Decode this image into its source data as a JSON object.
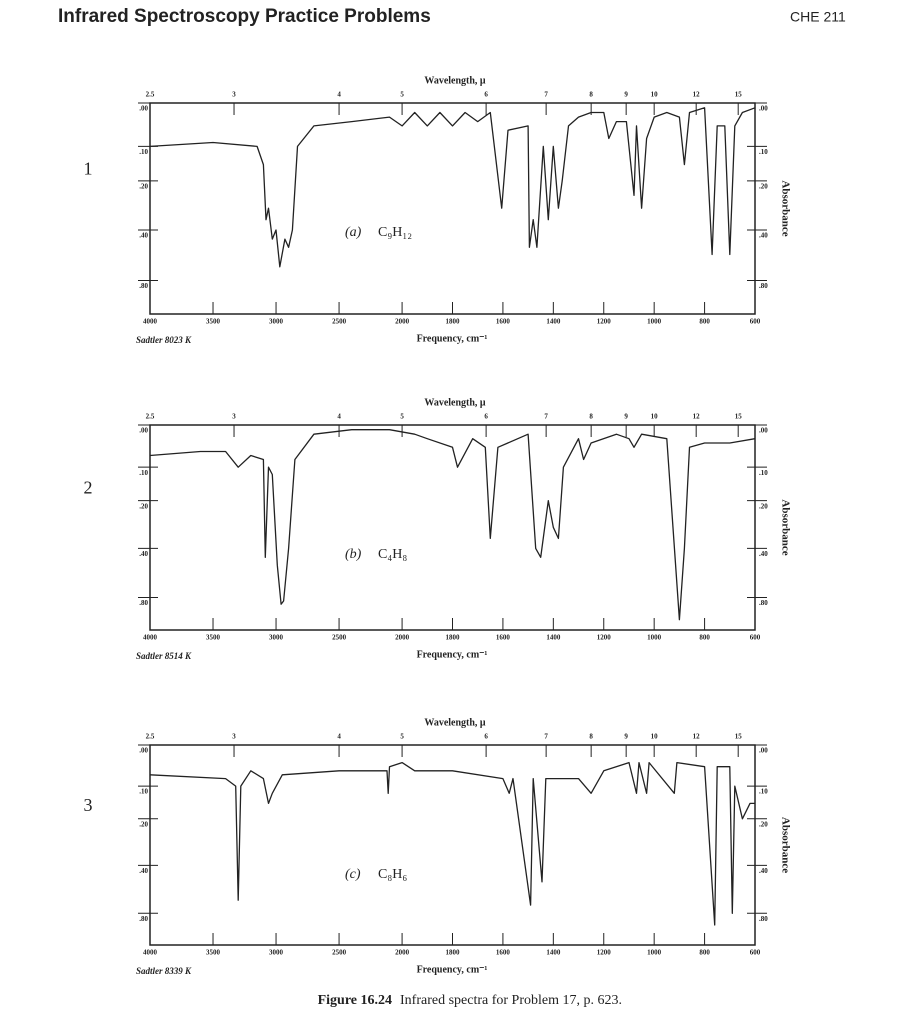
{
  "header": {
    "title": "Infrared Spectroscopy Practice Problems",
    "course": "CHE 211"
  },
  "chart_data": [
    {
      "type": "line",
      "number": "1",
      "x2label": "Wavelength, μ",
      "xlabel": "Frequency, cm⁻¹",
      "ylabel": "Absorbance",
      "source": "Sadtler 8023 K",
      "annotation_label": "(a)",
      "annotation_formula": "C₉H₁₂",
      "color": "#222222",
      "xlim": [
        4000,
        600
      ],
      "x_scale_break": 2000,
      "y_scale": "transmittance",
      "xticks": [
        4000,
        3500,
        3000,
        2500,
        2000,
        1800,
        1600,
        1400,
        1200,
        1000,
        800,
        600
      ],
      "x2ticks": [
        2.5,
        3,
        4,
        5,
        6,
        7,
        8,
        9,
        10,
        12,
        15
      ],
      "yticks": [
        {
          "value": 0,
          "label": ".00"
        },
        {
          "value": 0.1,
          "label": ".10"
        },
        {
          "value": 0.2,
          "label": ".20"
        },
        {
          "value": 0.4,
          "label": ".40"
        },
        {
          "value": 0.8,
          "label": ".80"
        }
      ],
      "x": [
        4000,
        3500,
        3150,
        3100,
        3080,
        3060,
        3030,
        3000,
        2970,
        2930,
        2900,
        2870,
        2830,
        2700,
        2400,
        2100,
        2000,
        1950,
        1900,
        1850,
        1800,
        1750,
        1700,
        1650,
        1605,
        1580,
        1500,
        1495,
        1480,
        1465,
        1440,
        1420,
        1400,
        1380,
        1365,
        1340,
        1300,
        1250,
        1200,
        1180,
        1150,
        1110,
        1080,
        1070,
        1050,
        1030,
        1000,
        950,
        900,
        880,
        860,
        800,
        770,
        750,
        720,
        700,
        680,
        650,
        600
      ],
      "values": [
        0.1,
        0.09,
        0.1,
        0.15,
        0.35,
        0.3,
        0.45,
        0.4,
        0.65,
        0.45,
        0.5,
        0.4,
        0.1,
        0.05,
        0.04,
        0.03,
        0.05,
        0.02,
        0.05,
        0.02,
        0.05,
        0.02,
        0.04,
        0.02,
        0.3,
        0.06,
        0.05,
        0.5,
        0.35,
        0.5,
        0.1,
        0.35,
        0.1,
        0.3,
        0.2,
        0.05,
        0.03,
        0.02,
        0.02,
        0.08,
        0.04,
        0.04,
        0.25,
        0.05,
        0.3,
        0.08,
        0.03,
        0.02,
        0.03,
        0.15,
        0.02,
        0.01,
        0.55,
        0.05,
        0.05,
        0.55,
        0.05,
        0.02,
        0.01
      ]
    },
    {
      "type": "line",
      "number": "2",
      "x2label": "Wavelength, μ",
      "xlabel": "Frequency, cm⁻¹",
      "ylabel": "Absorbance",
      "source": "Sadtler 8514 K",
      "annotation_label": "(b)",
      "annotation_formula": "C₄H₈",
      "color": "#222222",
      "xlim": [
        4000,
        600
      ],
      "x_scale_break": 2000,
      "y_scale": "transmittance",
      "xticks": [
        4000,
        3500,
        3000,
        2500,
        2000,
        1800,
        1600,
        1400,
        1200,
        1000,
        800,
        600
      ],
      "x2ticks": [
        2.5,
        3,
        4,
        5,
        6,
        7,
        8,
        9,
        10,
        12,
        15
      ],
      "yticks": [
        {
          "value": 0,
          "label": ".00"
        },
        {
          "value": 0.1,
          "label": ".10"
        },
        {
          "value": 0.2,
          "label": ".20"
        },
        {
          "value": 0.4,
          "label": ".40"
        },
        {
          "value": 0.8,
          "label": ".80"
        }
      ],
      "x": [
        4000,
        3600,
        3400,
        3300,
        3200,
        3100,
        3085,
        3060,
        3030,
        2990,
        2960,
        2940,
        2900,
        2850,
        2700,
        2400,
        2100,
        1950,
        1900,
        1800,
        1780,
        1720,
        1670,
        1650,
        1620,
        1500,
        1470,
        1450,
        1420,
        1400,
        1380,
        1360,
        1300,
        1280,
        1250,
        1150,
        1100,
        1080,
        1050,
        950,
        900,
        880,
        860,
        800,
        700,
        600
      ],
      "values": [
        0.07,
        0.06,
        0.06,
        0.1,
        0.07,
        0.08,
        0.45,
        0.1,
        0.12,
        0.5,
        0.9,
        0.85,
        0.4,
        0.08,
        0.02,
        0.01,
        0.01,
        0.02,
        0.03,
        0.05,
        0.1,
        0.03,
        0.05,
        0.35,
        0.05,
        0.02,
        0.4,
        0.45,
        0.2,
        0.3,
        0.35,
        0.1,
        0.03,
        0.08,
        0.04,
        0.02,
        0.03,
        0.05,
        0.02,
        0.03,
        1.3,
        0.4,
        0.05,
        0.04,
        0.04,
        0.03
      ]
    },
    {
      "type": "line",
      "number": "3",
      "x2label": "Wavelength, μ",
      "xlabel": "Frequency, cm⁻¹",
      "ylabel": "Absorbance",
      "source": "Sadtler 8339 K",
      "annotation_label": "(c)",
      "annotation_formula": "C₈H₆",
      "color": "#222222",
      "xlim": [
        4000,
        600
      ],
      "x_scale_break": 2000,
      "y_scale": "transmittance",
      "xticks": [
        4000,
        3500,
        3000,
        2500,
        2000,
        1800,
        1600,
        1400,
        1200,
        1000,
        800,
        600
      ],
      "x2ticks": [
        2.5,
        3,
        4,
        5,
        6,
        7,
        8,
        9,
        10,
        12,
        15
      ],
      "yticks": [
        {
          "value": 0,
          "label": ".00"
        },
        {
          "value": 0.1,
          "label": ".10"
        },
        {
          "value": 0.2,
          "label": ".20"
        },
        {
          "value": 0.4,
          "label": ".40"
        },
        {
          "value": 0.8,
          "label": ".80"
        }
      ],
      "x": [
        4000,
        3400,
        3320,
        3300,
        3280,
        3200,
        3100,
        3060,
        3030,
        2950,
        2500,
        2120,
        2110,
        2100,
        2000,
        1950,
        1800,
        1600,
        1575,
        1560,
        1490,
        1480,
        1445,
        1430,
        1300,
        1250,
        1200,
        1100,
        1070,
        1060,
        1030,
        1020,
        920,
        910,
        800,
        760,
        750,
        700,
        690,
        680,
        650,
        620,
        600
      ],
      "values": [
        0.07,
        0.08,
        0.1,
        0.65,
        0.1,
        0.06,
        0.08,
        0.15,
        0.12,
        0.07,
        0.06,
        0.06,
        0.12,
        0.05,
        0.04,
        0.06,
        0.06,
        0.08,
        0.12,
        0.08,
        0.7,
        0.08,
        0.5,
        0.08,
        0.08,
        0.12,
        0.06,
        0.04,
        0.12,
        0.04,
        0.12,
        0.04,
        0.12,
        0.04,
        0.05,
        1.0,
        0.05,
        0.05,
        0.8,
        0.1,
        0.2,
        0.15,
        0.15
      ]
    }
  ],
  "caption": {
    "label": "Figure 16.24",
    "text": "Infrared spectra for Problem 17, p. 623."
  }
}
